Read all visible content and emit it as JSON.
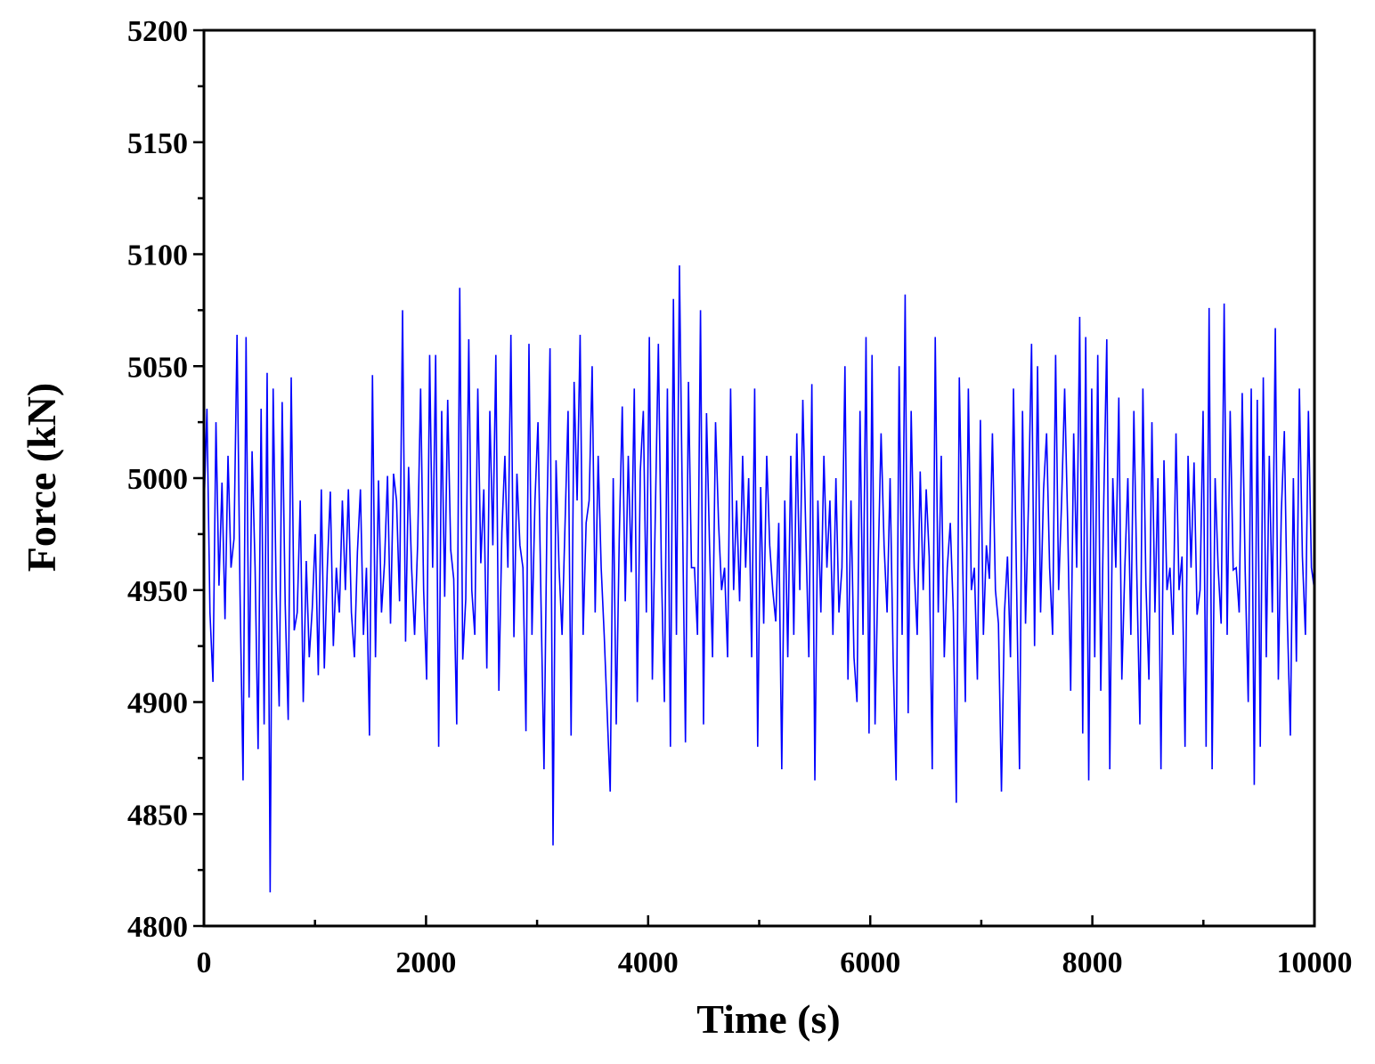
{
  "chart_data": {
    "type": "line",
    "title": "",
    "xlabel": "Time (s)",
    "ylabel": "Force (kN)",
    "xlim": [
      0,
      10000
    ],
    "ylim": [
      4800,
      5200
    ],
    "xticks": [
      0,
      2000,
      4000,
      6000,
      8000,
      10000
    ],
    "yticks": [
      4800,
      4850,
      4900,
      4950,
      5000,
      5050,
      5100,
      5150,
      5200
    ],
    "x_minor_step": 1000,
    "y_minor_step": 25,
    "grid": false,
    "legend": "none",
    "series": [
      {
        "color": "#0000ff",
        "x_start": 0,
        "x_end": 10000,
        "mean": 4970,
        "std": 28,
        "min": 4815,
        "max": 5095,
        "sample_count": 1000,
        "values": [
          4985,
          5031,
          4940,
          4909,
          5025,
          4952,
          4998,
          4937,
          5010,
          4960,
          4973,
          5064,
          4948,
          4865,
          5063,
          4902,
          5012,
          4960,
          4879,
          5031,
          4890,
          5047,
          4815,
          5040,
          4950,
          4898,
          5034,
          4944,
          4892,
          5045,
          4932,
          4940,
          4990,
          4900,
          4963,
          4920,
          4942,
          4975,
          4912,
          4995,
          4915,
          4960,
          4994,
          4925,
          4960,
          4940,
          4990,
          4950,
          4995,
          4940,
          4920,
          4967,
          4995,
          4930,
          4960,
          4885,
          5046,
          4920,
          4999,
          4940,
          4962,
          5001,
          4935,
          5002,
          4990,
          4945,
          5075,
          4927,
          5005,
          4960,
          4930,
          4970,
          5040,
          4950,
          4910,
          5055,
          4960,
          5055,
          4880,
          5030,
          4947,
          5035,
          4968,
          4955,
          4890,
          5085,
          4919,
          4946,
          5062,
          4950,
          4930,
          5040,
          4962,
          4995,
          4915,
          5030,
          4970,
          5055,
          4905,
          4976,
          5010,
          4960,
          5064,
          4929,
          5002,
          4970,
          4960,
          4887,
          5060,
          4930,
          4990,
          5025,
          4945,
          4870,
          4984,
          5058,
          4836,
          5008,
          4960,
          4930,
          4980,
          5030,
          4885,
          5043,
          4990,
          5064,
          4930,
          4980,
          4990,
          5050,
          4940,
          5010,
          4960,
          4930,
          4895,
          4860,
          5000,
          4890,
          4973,
          5032,
          4945,
          5010,
          4958,
          5040,
          4900,
          5003,
          5030,
          4940,
          5063,
          4910,
          4985,
          5060,
          4960,
          4900,
          5040,
          4880,
          5080,
          4930,
          5095,
          4985,
          4882,
          5043,
          4960,
          4960,
          4930,
          5075,
          4890,
          5029,
          4970,
          4920,
          5025,
          4980,
          4950,
          4960,
          4920,
          5040,
          4950,
          4990,
          4945,
          5010,
          4960,
          5000,
          4920,
          5040,
          4880,
          4996,
          4935,
          5010,
          4970,
          4950,
          4936,
          4980,
          4870,
          4990,
          4920,
          5010,
          4930,
          5020,
          4950,
          5035,
          4975,
          4920,
          5042,
          4865,
          4990,
          4940,
          5010,
          4960,
          4990,
          4930,
          5000,
          4940,
          4960,
          5050,
          4910,
          4990,
          4920,
          4900,
          5030,
          4930,
          5063,
          4886,
          5055,
          4890,
          4960,
          5020,
          4970,
          4940,
          5000,
          4920,
          4865,
          5050,
          4930,
          5082,
          4895,
          5030,
          4960,
          4930,
          5003,
          4950,
          4995,
          4965,
          4870,
          5063,
          4940,
          5010,
          4920,
          4960,
          4980,
          4940,
          4855,
          5045,
          4970,
          4900,
          5040,
          4950,
          4960,
          4910,
          5026,
          4930,
          4970,
          4955,
          5020,
          4950,
          4935,
          4860,
          4940,
          4965,
          4920,
          5040,
          4955,
          4870,
          5030,
          4935,
          4990,
          5060,
          4925,
          5050,
          4940,
          4995,
          5020,
          4960,
          4930,
          5055,
          4950,
          4990,
          5040,
          4980,
          4905,
          5020,
          4960,
          5072,
          4886,
          5063,
          4865,
          5040,
          4920,
          5055,
          4905,
          4990,
          5062,
          4870,
          5000,
          4960,
          5036,
          4910,
          4960,
          5000,
          4930,
          5030,
          4955,
          4890,
          5040,
          4953,
          4910,
          5025,
          4940,
          5000,
          4870,
          5008,
          4950,
          4960,
          4930,
          5020,
          4950,
          4965,
          4880,
          5010,
          4960,
          5007,
          4939,
          4950,
          5030,
          4880,
          5076,
          4870,
          5000,
          4960,
          4935,
          5078,
          4930,
          5030,
          4959,
          4960,
          4940,
          5038,
          4958,
          4900,
          5040,
          4863,
          5035,
          4880,
          5045,
          4920,
          5010,
          4940,
          5067,
          4910,
          4985,
          5021,
          4937,
          4885,
          5000,
          4918,
          5040,
          4965,
          4930,
          5030,
          4960,
          4950
        ]
      }
    ]
  }
}
